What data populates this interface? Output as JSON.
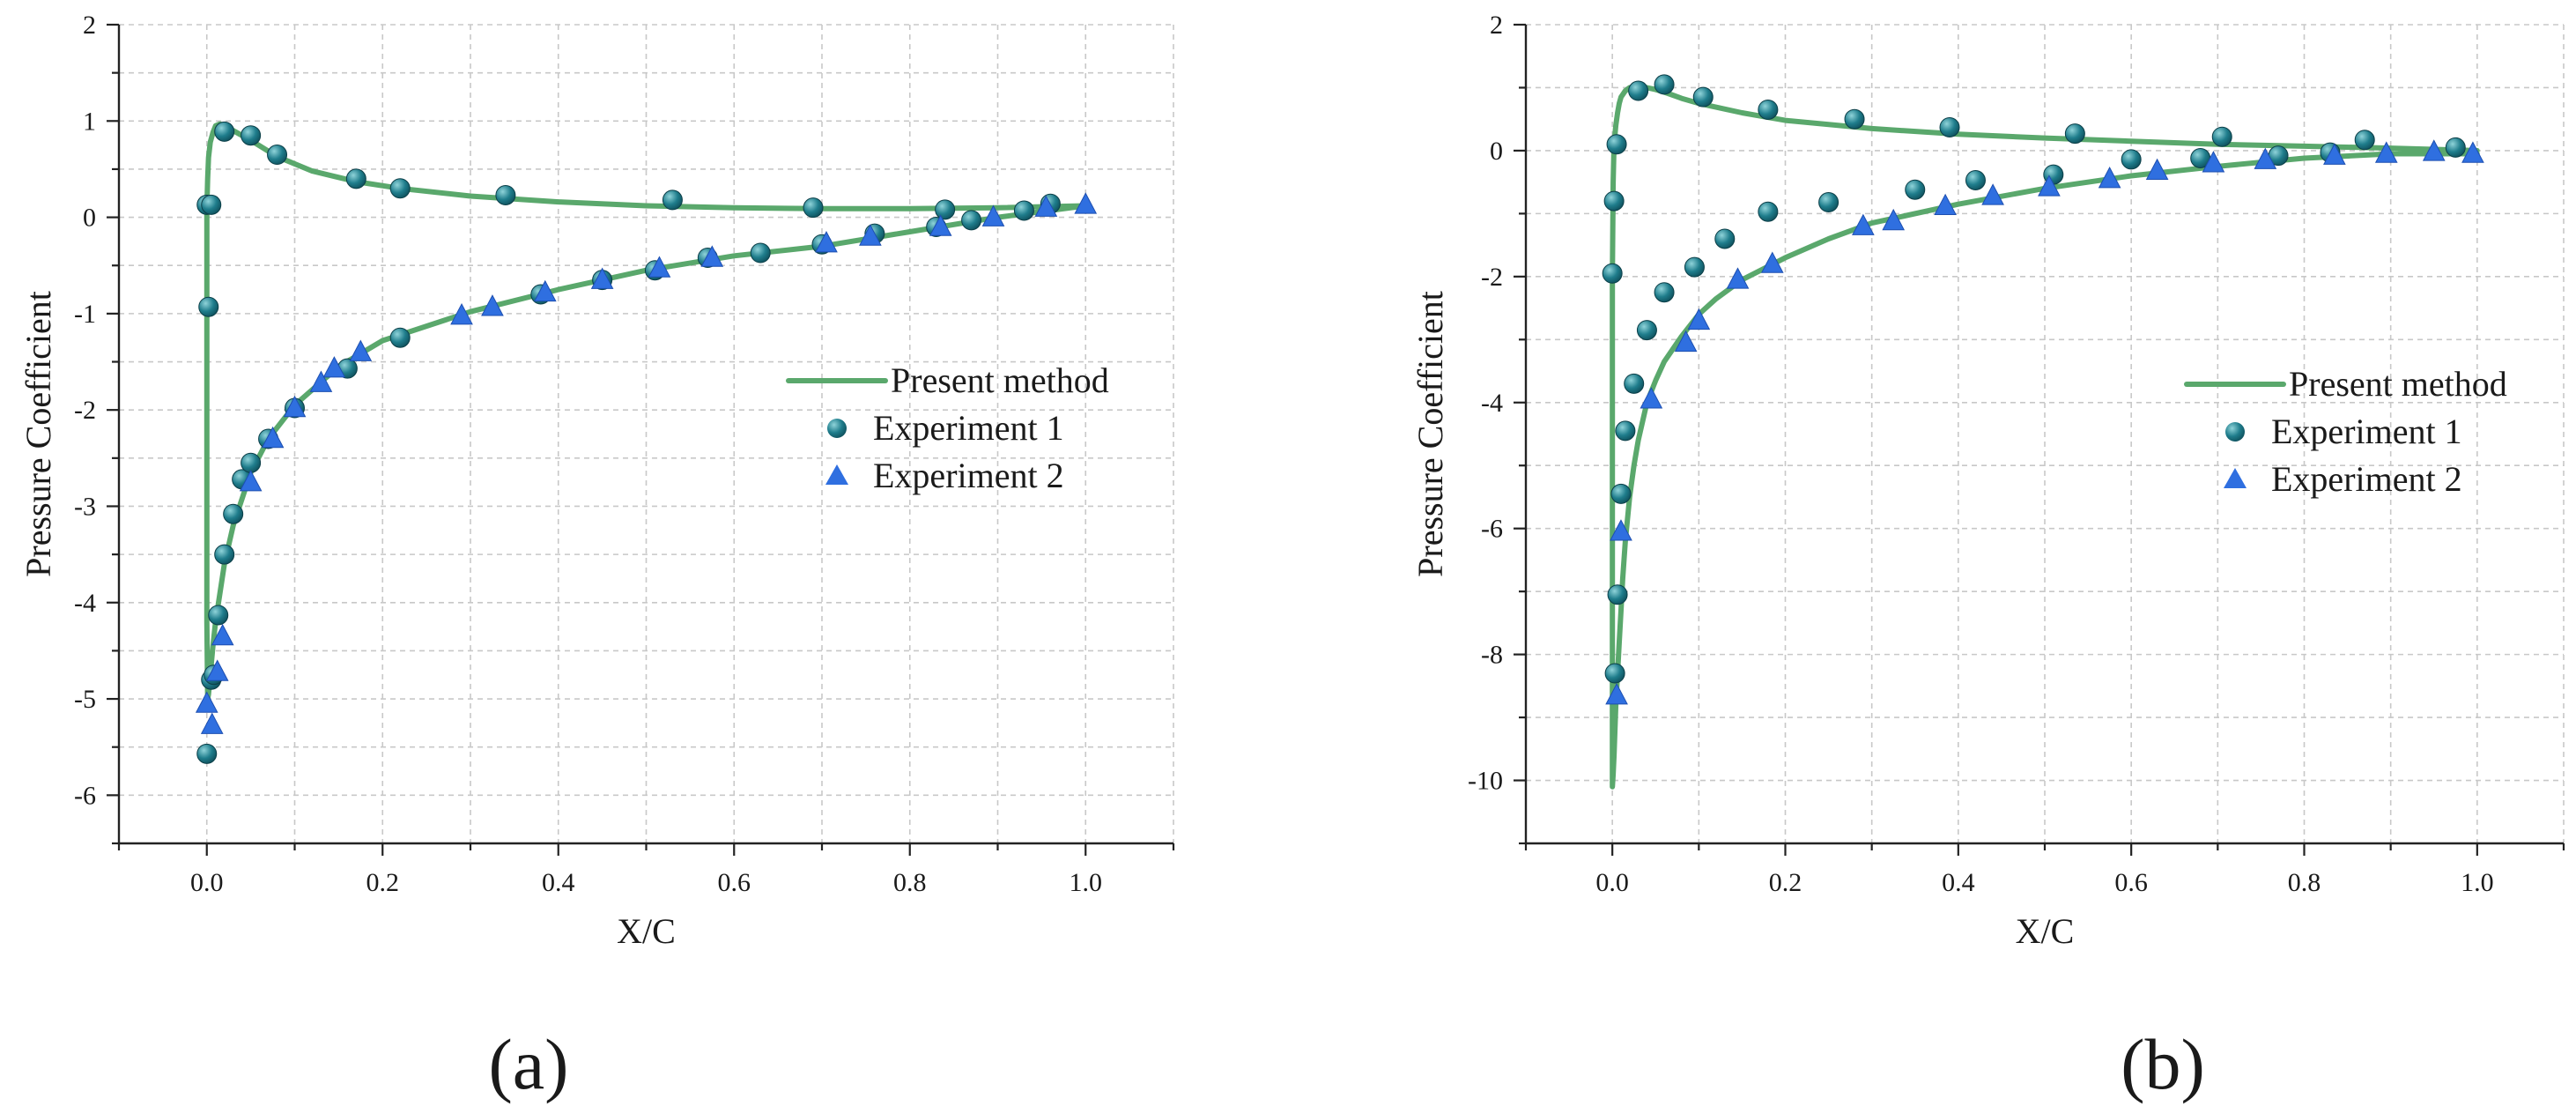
{
  "colors": {
    "line": "#5aa86c",
    "marker_circle": "#1f7d8c",
    "marker_circle_highlight": "#8fd3d9",
    "marker_triangle": "#2f6fe0",
    "grid": "#c8c8c8",
    "axis": "#222222"
  },
  "chart_data": [
    {
      "type": "line",
      "panel_label": "(a)",
      "xlabel": "X/C",
      "ylabel": "Pressure Coefficient",
      "xlim": [
        -0.1,
        1.1
      ],
      "ylim": [
        -6.5,
        2
      ],
      "x_ticks": [
        0.0,
        0.2,
        0.4,
        0.6,
        0.8,
        1.0
      ],
      "x_tick_labels": [
        "0.0",
        "0.2",
        "0.4",
        "0.6",
        "0.8",
        "1.0"
      ],
      "y_ticks": [
        -6,
        -5,
        -4,
        -3,
        -2,
        -1,
        0,
        1,
        2
      ],
      "y_tick_labels": [
        "-6",
        "-5",
        "-4",
        "-3",
        "-2",
        "-1",
        "0",
        "1",
        "2"
      ],
      "grid": true,
      "legend_position": "center-right",
      "series": [
        {
          "name": "Present method",
          "kind": "line",
          "x": [
            1.0,
            0.9,
            0.8,
            0.7,
            0.6,
            0.5,
            0.4,
            0.3,
            0.2,
            0.15,
            0.1,
            0.07,
            0.05,
            0.03,
            0.02,
            0.015,
            0.01,
            0.007,
            0.005,
            0.003,
            0.002,
            0.001,
            0.0,
            0.0,
            0.0,
            0.001,
            0.002,
            0.004,
            0.007,
            0.01,
            0.015,
            0.02,
            0.03,
            0.05,
            0.08,
            0.12,
            0.17,
            0.22,
            0.3,
            0.4,
            0.5,
            0.6,
            0.7,
            0.8,
            0.9,
            1.0
          ],
          "y": [
            0.12,
            0.0,
            -0.15,
            -0.3,
            -0.4,
            -0.55,
            -0.75,
            -0.98,
            -1.28,
            -1.55,
            -1.95,
            -2.3,
            -2.65,
            -3.2,
            -3.6,
            -3.9,
            -4.2,
            -4.45,
            -4.65,
            -4.85,
            -4.95,
            -5.0,
            -4.2,
            -1.0,
            0.1,
            0.4,
            0.62,
            0.78,
            0.88,
            0.95,
            0.97,
            0.95,
            0.9,
            0.8,
            0.63,
            0.48,
            0.37,
            0.3,
            0.22,
            0.16,
            0.12,
            0.1,
            0.09,
            0.09,
            0.1,
            0.12
          ]
        },
        {
          "name": "Experiment 1",
          "kind": "marker-circle",
          "x": [
            0.0,
            0.002,
            0.005,
            0.008,
            0.013,
            0.02,
            0.03,
            0.04,
            0.05,
            0.07,
            0.1,
            0.16,
            0.22,
            0.38,
            0.45,
            0.51,
            0.57,
            0.63,
            0.7,
            0.76,
            0.83,
            0.87,
            0.96,
            0.0,
            0.005,
            0.02,
            0.05,
            0.08,
            0.17,
            0.22,
            0.34,
            0.53,
            0.69,
            0.84,
            0.93
          ],
          "y": [
            -5.57,
            -0.93,
            -4.8,
            -4.75,
            -4.13,
            -3.5,
            -3.08,
            -2.72,
            -2.55,
            -2.3,
            -1.98,
            -1.57,
            -1.25,
            -0.8,
            -0.65,
            -0.55,
            -0.42,
            -0.37,
            -0.28,
            -0.17,
            -0.1,
            -0.03,
            0.14,
            0.13,
            0.13,
            0.89,
            0.85,
            0.65,
            0.4,
            0.3,
            0.23,
            0.18,
            0.1,
            0.08,
            0.07
          ]
        },
        {
          "name": "Experiment 2",
          "kind": "marker-triangle",
          "x": [
            0.0,
            0.006,
            0.012,
            0.018,
            0.05,
            0.075,
            0.1,
            0.13,
            0.145,
            0.175,
            0.29,
            0.325,
            0.385,
            0.45,
            0.515,
            0.575,
            0.705,
            0.755,
            0.835,
            0.895,
            0.955,
            1.0
          ],
          "y": [
            -5.05,
            -5.27,
            -4.72,
            -4.35,
            -2.75,
            -2.3,
            -1.98,
            -1.72,
            -1.57,
            -1.4,
            -1.02,
            -0.93,
            -0.78,
            -0.65,
            -0.53,
            -0.42,
            -0.27,
            -0.2,
            -0.1,
            0.0,
            0.1,
            0.13
          ]
        }
      ]
    },
    {
      "type": "line",
      "panel_label": "(b)",
      "xlabel": "X/C",
      "ylabel": "Pressure Coefficient",
      "xlim": [
        -0.1,
        1.1
      ],
      "ylim": [
        -11,
        2
      ],
      "x_ticks": [
        0.0,
        0.2,
        0.4,
        0.6,
        0.8,
        1.0
      ],
      "x_tick_labels": [
        "0.0",
        "0.2",
        "0.4",
        "0.6",
        "0.8",
        "1.0"
      ],
      "y_ticks": [
        -10,
        -8,
        -6,
        -4,
        -2,
        0,
        2
      ],
      "y_tick_labels": [
        "-10",
        "-8",
        "-6",
        "-4",
        "-2",
        "0",
        "2"
      ],
      "grid": true,
      "legend_position": "center-right",
      "series": [
        {
          "name": "Present method",
          "kind": "line",
          "x": [
            1.0,
            0.9,
            0.8,
            0.7,
            0.6,
            0.5,
            0.4,
            0.3,
            0.25,
            0.2,
            0.15,
            0.12,
            0.1,
            0.08,
            0.06,
            0.05,
            0.04,
            0.03,
            0.025,
            0.02,
            0.015,
            0.012,
            0.01,
            0.008,
            0.006,
            0.004,
            0.003,
            0.002,
            0.001,
            0.0,
            0.0,
            0.0,
            0.001,
            0.002,
            0.004,
            0.006,
            0.008,
            0.01,
            0.015,
            0.02,
            0.03,
            0.04,
            0.05,
            0.06,
            0.07,
            0.08,
            0.1,
            0.15,
            0.2,
            0.3,
            0.4,
            0.5,
            0.6,
            0.7,
            0.8,
            0.9,
            1.0
          ],
          "y": [
            -0.05,
            -0.05,
            -0.12,
            -0.25,
            -0.4,
            -0.6,
            -0.85,
            -1.15,
            -1.4,
            -1.7,
            -2.05,
            -2.35,
            -2.6,
            -2.95,
            -3.35,
            -3.65,
            -4.0,
            -4.6,
            -5.0,
            -5.5,
            -6.2,
            -6.8,
            -7.3,
            -7.8,
            -8.3,
            -8.8,
            -9.2,
            -9.6,
            -9.9,
            -10.1,
            -5.0,
            -2.0,
            -0.5,
            0.1,
            0.4,
            0.6,
            0.75,
            0.85,
            0.95,
            1.0,
            1.02,
            1.0,
            0.97,
            0.93,
            0.88,
            0.83,
            0.75,
            0.6,
            0.48,
            0.35,
            0.26,
            0.2,
            0.15,
            0.1,
            0.07,
            0.04,
            0.0
          ]
        },
        {
          "name": "Experiment 1",
          "kind": "marker-circle",
          "x": [
            0.003,
            0.006,
            0.01,
            0.015,
            0.025,
            0.04,
            0.06,
            0.095,
            0.13,
            0.18,
            0.25,
            0.35,
            0.42,
            0.51,
            0.6,
            0.68,
            0.77,
            0.83,
            0.0,
            0.002,
            0.005,
            0.03,
            0.06,
            0.105,
            0.18,
            0.28,
            0.39,
            0.535,
            0.705,
            0.87,
            0.975
          ],
          "y": [
            -8.3,
            -7.05,
            -5.45,
            -4.45,
            -3.7,
            -2.85,
            -2.25,
            -1.85,
            -1.4,
            -0.97,
            -0.82,
            -0.62,
            -0.47,
            -0.38,
            -0.14,
            -0.12,
            -0.08,
            -0.03,
            -1.95,
            -0.8,
            0.1,
            0.95,
            1.05,
            0.85,
            0.65,
            0.5,
            0.37,
            0.27,
            0.22,
            0.17,
            0.05
          ]
        },
        {
          "name": "Experiment 2",
          "kind": "marker-triangle",
          "x": [
            0.005,
            0.01,
            0.045,
            0.085,
            0.1,
            0.145,
            0.185,
            0.29,
            0.325,
            0.385,
            0.44,
            0.505,
            0.575,
            0.63,
            0.695,
            0.755,
            0.835,
            0.895,
            0.95,
            0.995
          ],
          "y": [
            -8.65,
            -6.05,
            -3.95,
            -3.05,
            -2.7,
            -2.05,
            -1.8,
            -1.2,
            -1.12,
            -0.88,
            -0.72,
            -0.58,
            -0.45,
            -0.32,
            -0.2,
            -0.15,
            -0.08,
            -0.05,
            -0.02,
            -0.05
          ]
        }
      ]
    }
  ]
}
